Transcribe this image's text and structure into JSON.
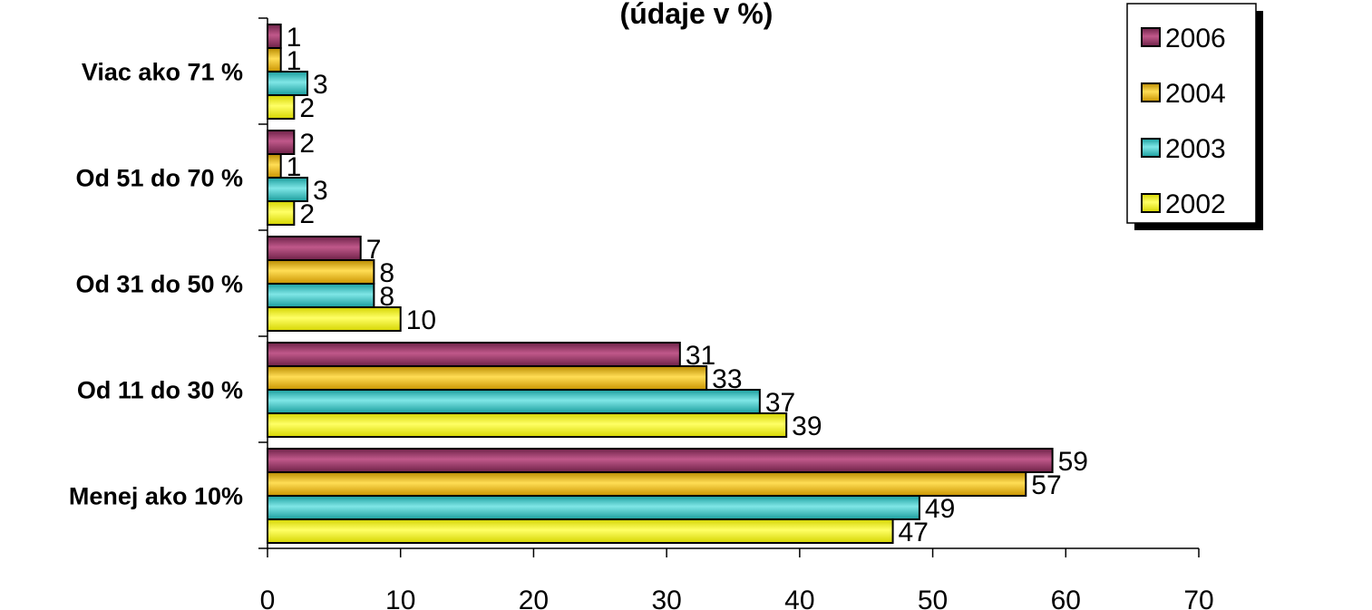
{
  "chart_data": {
    "type": "bar",
    "orientation": "horizontal",
    "title": "(údaje v %)",
    "categories": [
      "Menej ako 10%",
      "Od 11 do 30 %",
      "Od 31 do 50 %",
      "Od 51 do 70 %",
      "Viac ako 71 %"
    ],
    "series": [
      {
        "name": "2006",
        "color": "#993366",
        "values": [
          59,
          31,
          7,
          2,
          1
        ]
      },
      {
        "name": "2004",
        "color": "#ffcc00",
        "values": [
          57,
          33,
          8,
          1,
          1
        ]
      },
      {
        "name": "2003",
        "color": "#33cccc",
        "values": [
          49,
          37,
          8,
          3,
          3
        ]
      },
      {
        "name": "2002",
        "color": "#ffff00",
        "values": [
          47,
          39,
          10,
          2,
          2
        ]
      }
    ],
    "xlim": [
      0,
      70
    ],
    "xticks": [
      0,
      10,
      20,
      30,
      40,
      50,
      60,
      70
    ],
    "xlabel": "",
    "ylabel": "",
    "grid": false,
    "legend": "top-right",
    "data_labels": true
  }
}
